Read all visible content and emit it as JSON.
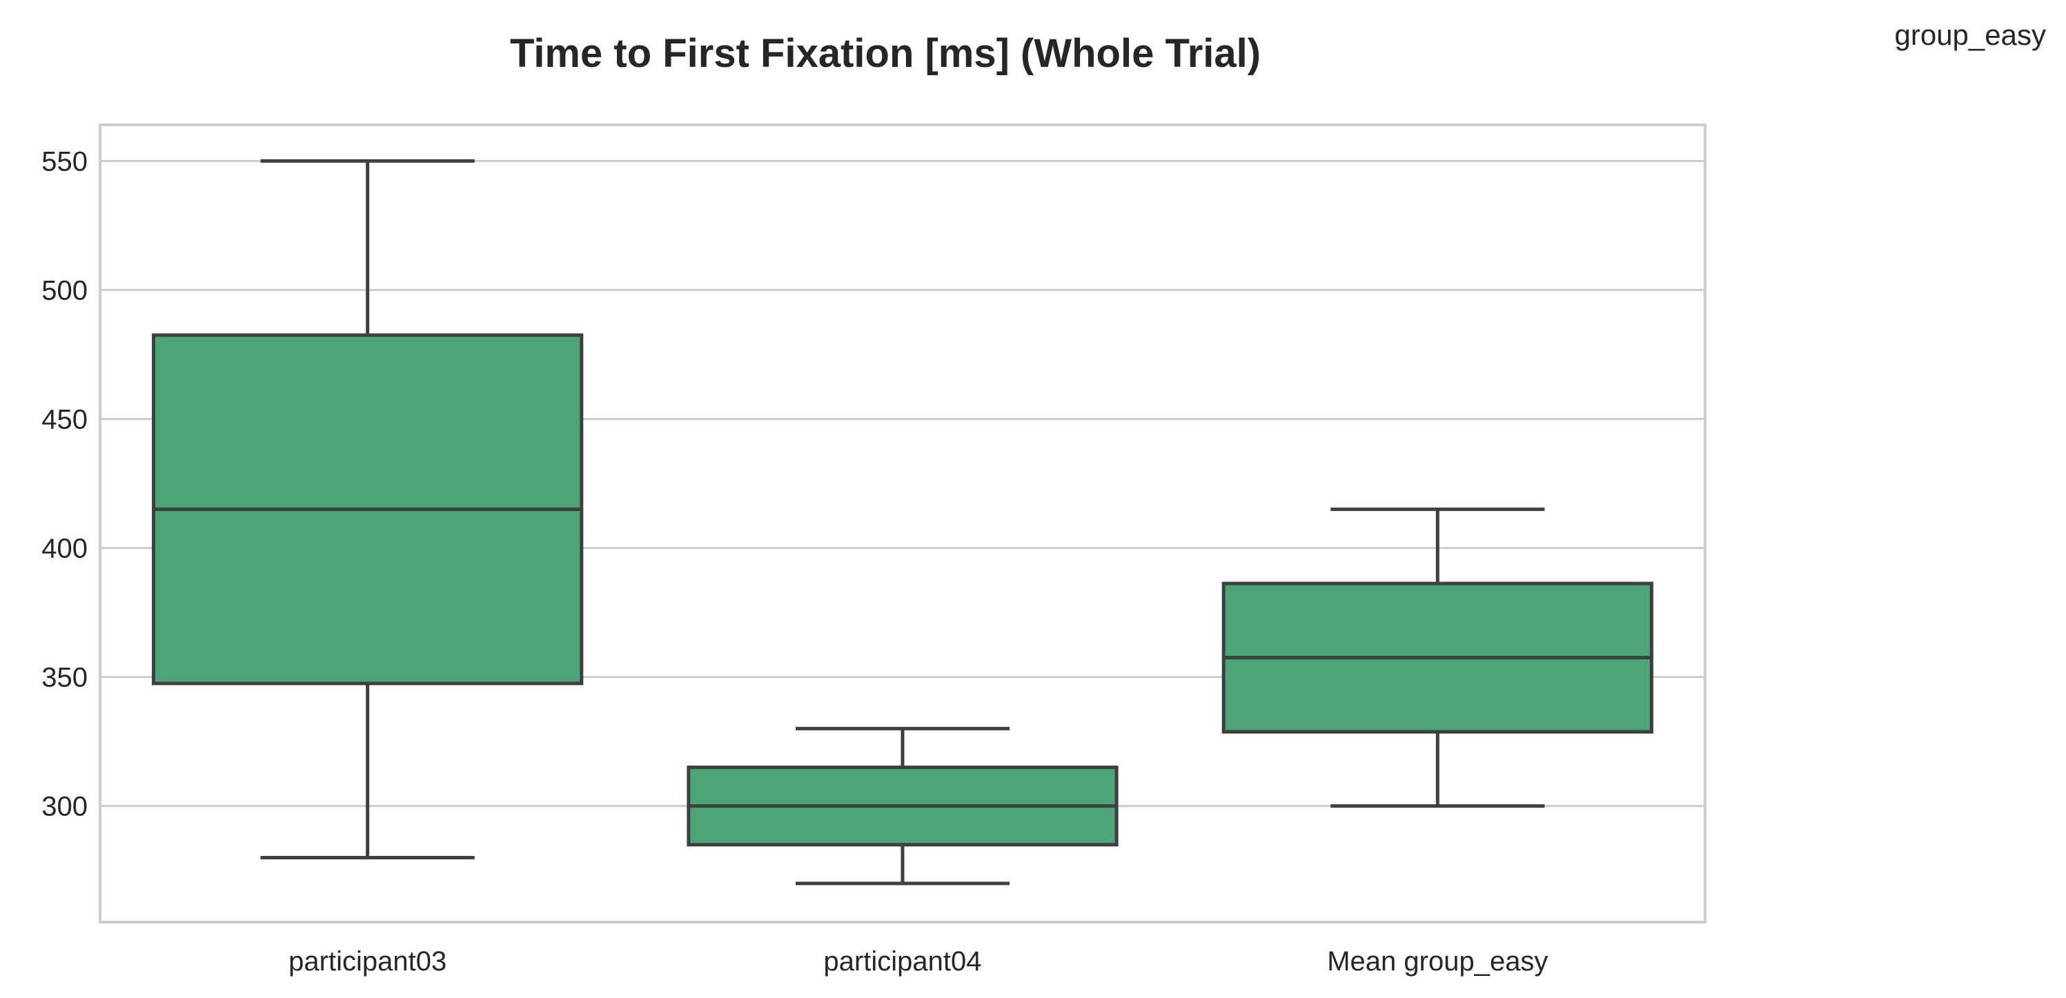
{
  "chart_data": {
    "type": "box",
    "title": "Time to First Fixation [ms] (Whole Trial)",
    "legend_title": "group_easy",
    "xlabel": "",
    "ylabel": "",
    "ylim": [
      255,
      564
    ],
    "yticks": [
      300,
      350,
      400,
      450,
      500,
      550
    ],
    "grid": true,
    "box_color": "#4ca574",
    "line_color": "#3f3f3f",
    "grid_color": "#cccccc",
    "categories": [
      "participant03",
      "participant04",
      "Mean group_easy"
    ],
    "boxes": [
      {
        "category": "participant03",
        "whisker_low": 280,
        "q1": 347.5,
        "median": 415,
        "q3": 482.5,
        "whisker_high": 550
      },
      {
        "category": "participant04",
        "whisker_low": 270,
        "q1": 285,
        "median": 300,
        "q3": 315,
        "whisker_high": 330
      },
      {
        "category": "Mean group_easy",
        "whisker_low": 300,
        "q1": 328.75,
        "median": 357.5,
        "q3": 386.25,
        "whisker_high": 415
      }
    ]
  }
}
